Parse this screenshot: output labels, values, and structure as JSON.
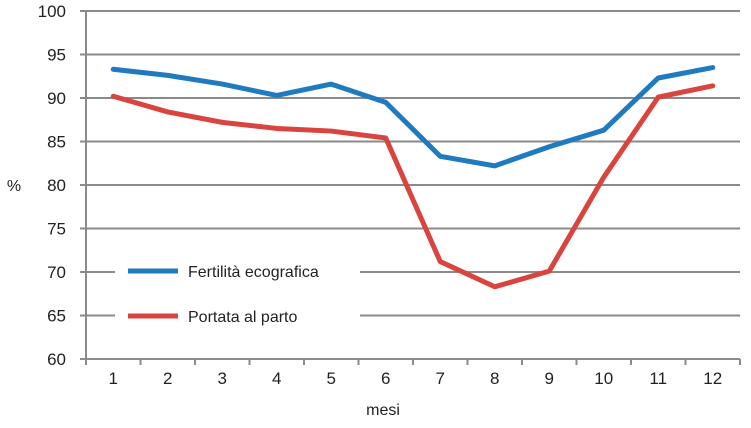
{
  "chart_data": {
    "type": "line",
    "title": "",
    "xlabel": "mesi",
    "ylabel": "%",
    "categories": [
      "1",
      "2",
      "3",
      "4",
      "5",
      "6",
      "7",
      "8",
      "9",
      "10",
      "11",
      "12"
    ],
    "ylim": [
      60,
      100
    ],
    "yticks": [
      60,
      65,
      70,
      75,
      80,
      85,
      90,
      95,
      100
    ],
    "grid": true,
    "legend_position": "bottom-left inside",
    "series": [
      {
        "name": "Fertilità ecografica",
        "color": "#1f7ac0",
        "values": [
          93.3,
          92.6,
          91.6,
          90.3,
          91.6,
          89.5,
          83.3,
          82.2,
          84.4,
          86.3,
          92.3,
          93.5
        ]
      },
      {
        "name": "Portata al parto",
        "color": "#d9443f",
        "values": [
          90.2,
          88.4,
          87.2,
          86.5,
          86.2,
          85.4,
          71.2,
          68.3,
          70.1,
          80.9,
          90.1,
          91.4
        ]
      }
    ]
  }
}
